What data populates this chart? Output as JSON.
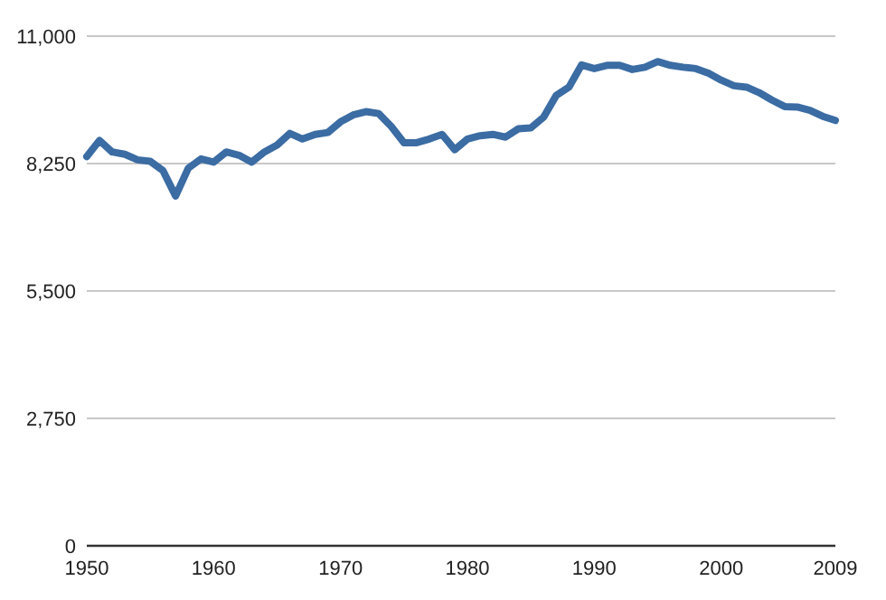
{
  "chart_data": {
    "type": "line",
    "x": [
      1950,
      1951,
      1952,
      1953,
      1954,
      1955,
      1956,
      1957,
      1958,
      1959,
      1960,
      1961,
      1962,
      1963,
      1964,
      1965,
      1966,
      1967,
      1968,
      1969,
      1970,
      1971,
      1972,
      1973,
      1974,
      1975,
      1976,
      1977,
      1978,
      1979,
      1980,
      1981,
      1982,
      1983,
      1984,
      1985,
      1986,
      1987,
      1988,
      1989,
      1990,
      1991,
      1992,
      1993,
      1994,
      1995,
      1996,
      1997,
      1998,
      1999,
      2000,
      2001,
      2002,
      2003,
      2004,
      2005,
      2006,
      2007,
      2008,
      2009
    ],
    "series": [
      {
        "color": "#3b6ca3",
        "values": [
          8400,
          8750,
          8500,
          8450,
          8330,
          8300,
          8100,
          7550,
          8150,
          8350,
          8280,
          8500,
          8430,
          8280,
          8500,
          8650,
          8900,
          8780,
          8880,
          8920,
          9150,
          9300,
          9370,
          9330,
          9050,
          8700,
          8700,
          8780,
          8880,
          8550,
          8780,
          8850,
          8880,
          8820,
          9000,
          9020,
          9250,
          9720,
          9900,
          10380,
          10300,
          10370,
          10370,
          10280,
          10330,
          10450,
          10370,
          10330,
          10300,
          10200,
          10050,
          9930,
          9900,
          9780,
          9620,
          9480,
          9470,
          9400,
          9270,
          9180
        ]
      }
    ],
    "xlim": [
      1950,
      2009
    ],
    "xticks": [
      1950,
      1960,
      1970,
      1980,
      1990,
      2000,
      2009
    ],
    "ylim": [
      0,
      11000
    ],
    "yticks": [
      {
        "value": 0,
        "label": "0"
      },
      {
        "value": 2750,
        "label": "2,750"
      },
      {
        "value": 5500,
        "label": "5,500"
      },
      {
        "value": 8250,
        "label": "8,250"
      },
      {
        "value": 11000,
        "label": "11,000"
      }
    ],
    "grid": "y",
    "marker": "none",
    "line_style": "solid"
  }
}
